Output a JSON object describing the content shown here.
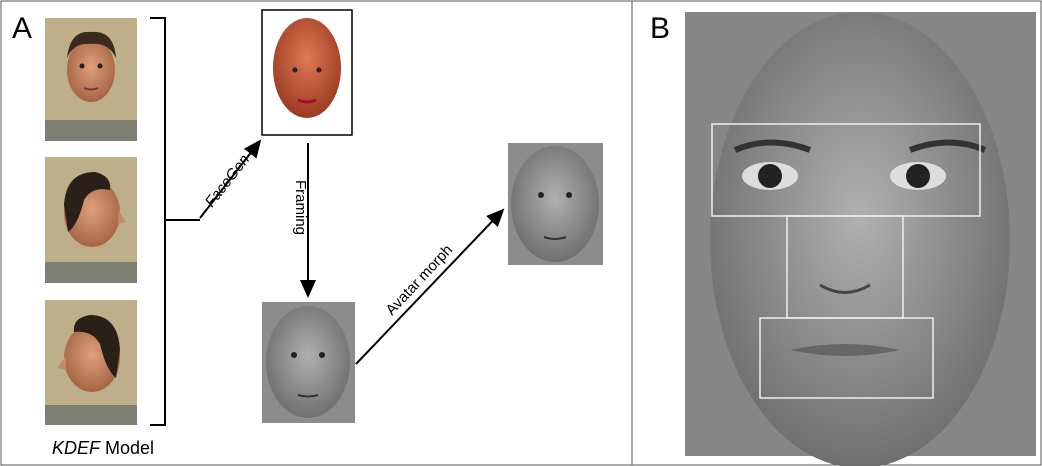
{
  "panels": [
    {
      "label": "A"
    },
    {
      "label": "B"
    }
  ],
  "source": {
    "emphasis": "KDEF",
    "text": "Model"
  },
  "arrows": [
    {
      "label": "FaceGen"
    },
    {
      "label": "Framing"
    },
    {
      "label": "Avatar morph"
    }
  ]
}
